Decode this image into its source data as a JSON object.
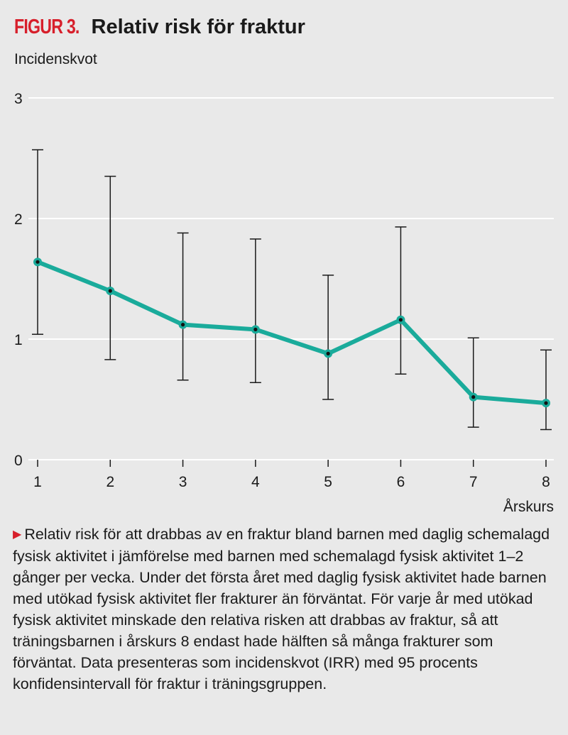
{
  "title": {
    "prefix": "FIGUR 3.",
    "text": "Relativ risk för fraktur"
  },
  "caption": "Relativ risk för att drabbas av en fraktur bland barnen med daglig schemalagd fysisk aktivitet i jämförelse med barnen med schemalagd fysisk aktivitet 1–2 gånger per vecka. Under det första året med daglig fysisk aktivitet hade barnen med utökad fysisk aktivitet fler frakturer än förväntat. För varje år med utökad fysisk aktivitet minskade den relativa risken att drabbas av fraktur, så att träningsbarnen i årskurs 8 endast hade hälften så många frakturer som förväntat. Data presenteras som incidenskvot (IRR) med 95 procents konfidensintervall för fraktur i träningsgruppen.",
  "chart_data": {
    "type": "line",
    "title": "Relativ risk för fraktur",
    "xlabel": "Årskurs",
    "ylabel": "Incidenskvot",
    "x": [
      1,
      2,
      3,
      4,
      5,
      6,
      7,
      8
    ],
    "y_ticks": [
      0,
      1,
      2,
      3
    ],
    "ylim": [
      0,
      3
    ],
    "grid": true,
    "series": [
      {
        "name": "IRR",
        "color": "#1aab9b",
        "values": [
          1.64,
          1.4,
          1.12,
          1.08,
          0.88,
          1.16,
          0.52,
          0.47
        ],
        "ci_low": [
          1.04,
          0.83,
          0.66,
          0.64,
          0.5,
          0.71,
          0.27,
          0.25
        ],
        "ci_high": [
          2.57,
          2.35,
          1.88,
          1.83,
          1.53,
          1.93,
          1.01,
          0.91
        ]
      }
    ]
  }
}
